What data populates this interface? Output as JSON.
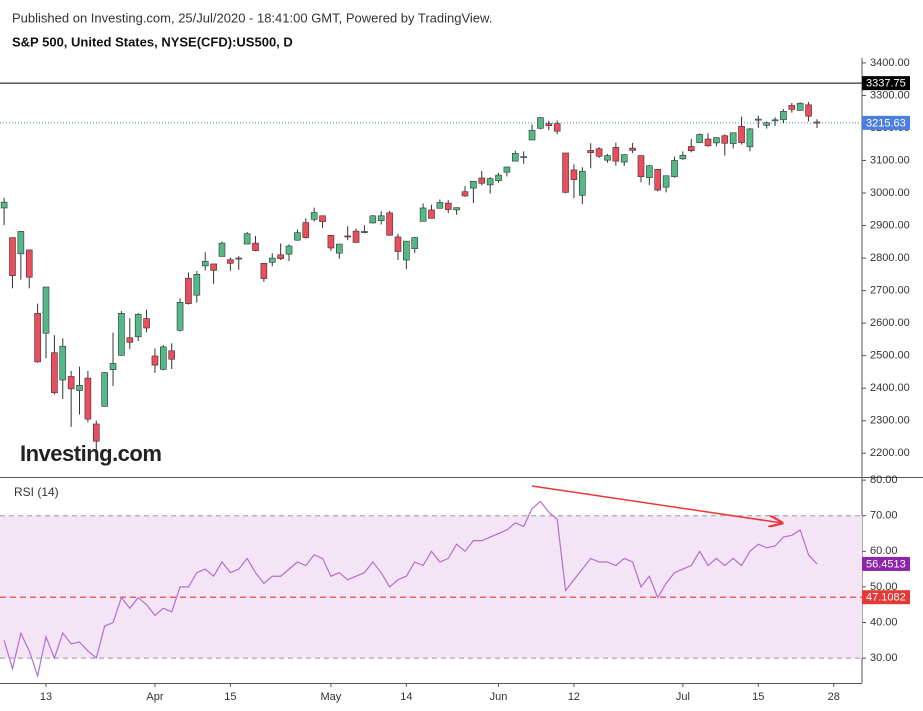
{
  "header": {
    "published": "Published on Investing.com, 25/Jul/2020 - 18:41:00 GMT, Powered by TradingView.",
    "watermark": "Investing.com"
  },
  "chart_data": [
    {
      "type": "candlestick",
      "title": "S&P 500, United States, NYSE(CFD):US500, D",
      "categories": [
        null,
        null,
        null,
        null,
        null,
        "13",
        null,
        null,
        null,
        null,
        null,
        null,
        null,
        null,
        null,
        null,
        null,
        null,
        "Apr",
        null,
        null,
        null,
        null,
        null,
        null,
        null,
        null,
        "15",
        null,
        null,
        null,
        null,
        null,
        null,
        null,
        null,
        null,
        null,
        null,
        "May",
        null,
        null,
        null,
        null,
        null,
        null,
        null,
        null,
        "14",
        null,
        null,
        null,
        null,
        null,
        null,
        null,
        null,
        null,
        null,
        "Jun",
        null,
        null,
        null,
        null,
        null,
        null,
        null,
        null,
        "12",
        null,
        null,
        null,
        null,
        null,
        null,
        null,
        null,
        null,
        null,
        null,
        null,
        "Jul",
        null,
        null,
        null,
        null,
        null,
        null,
        null,
        null,
        "15",
        null,
        null,
        null,
        null,
        null,
        null,
        null,
        null,
        "28"
      ],
      "open": [
        2954,
        2863,
        2813,
        2825,
        2630,
        2569,
        2509,
        2425,
        2436,
        2393,
        2431,
        2290,
        2344,
        2457,
        2501,
        2555,
        2558,
        2614,
        2499,
        2458,
        2515,
        2578,
        2738,
        2686,
        2776,
        2782,
        2805,
        2795,
        2800,
        2843,
        2846,
        2784,
        2787,
        2810,
        2812,
        2855,
        2909,
        2919,
        2930,
        2870,
        2815,
        2868,
        2883,
        2878,
        2908,
        2915,
        2939,
        2865,
        2794,
        2829,
        2913,
        2948,
        2953,
        2969,
        2948,
        3004,
        3015,
        3046,
        3025,
        3038,
        3064,
        3098,
        3111,
        3163,
        3199,
        3213,
        3213,
        3123,
        3071,
        2993,
        3131,
        3136,
        3101,
        3140,
        3095,
        3138,
        3115,
        3047,
        3073,
        3018,
        3050,
        3105,
        3143,
        3155,
        3166,
        3154,
        3176,
        3152,
        3205,
        3142,
        3226,
        3208,
        3224,
        3225,
        3269,
        3254,
        3271,
        3218,
        null,
        null
      ],
      "high": [
        2985,
        2863,
        2882,
        2825,
        2660,
        2711,
        2563,
        2553,
        2453,
        2466,
        2453,
        2300,
        2449,
        2571,
        2637,
        2615,
        2631,
        2641,
        2522,
        2533,
        2538,
        2676,
        2756,
        2760,
        2818,
        2782,
        2851,
        2801,
        2806,
        2880,
        2868,
        2785,
        2815,
        2845,
        2842,
        2888,
        2922,
        2955,
        2930,
        2870,
        2844,
        2898,
        2891,
        2901,
        2932,
        2944,
        2945,
        2875,
        2852,
        2865,
        2968,
        2964,
        2980,
        2978,
        2956,
        3021,
        3036,
        3068,
        3049,
        3062,
        3081,
        3130,
        3128,
        3211,
        3233,
        3222,
        3223,
        3123,
        3088,
        3079,
        3153,
        3141,
        3120,
        3155,
        3120,
        3154,
        3115,
        3086,
        3073,
        3054,
        3112,
        3128,
        3166,
        3183,
        3184,
        3172,
        3180,
        3186,
        3235,
        3200,
        3238,
        3220,
        3233,
        3258,
        3277,
        3279,
        3280,
        3227,
        null,
        null
      ],
      "low": [
        2901,
        2707,
        2734,
        2707,
        2478,
        2492,
        2380,
        2367,
        2281,
        2319,
        2295,
        2192,
        2344,
        2407,
        2500,
        2520,
        2545,
        2572,
        2447,
        2455,
        2459,
        2574,
        2657,
        2663,
        2762,
        2721,
        2805,
        2761,
        2764,
        2843,
        2821,
        2727,
        2775,
        2794,
        2791,
        2853,
        2860,
        2912,
        2892,
        2822,
        2798,
        2855,
        2847,
        2876,
        2906,
        2903,
        2869,
        2794,
        2766,
        2816,
        2913,
        2922,
        2953,
        2938,
        2933,
        2988,
        2969,
        3023,
        2998,
        3031,
        3051,
        3097,
        3090,
        3163,
        3196,
        3193,
        3181,
        2999,
        2984,
        2966,
        3076,
        3108,
        3093,
        3084,
        3083,
        3123,
        3033,
        3024,
        3005,
        3002,
        3047,
        3101,
        3125,
        3155,
        3142,
        3144,
        3115,
        3137,
        3149,
        3128,
        3200,
        3198,
        3206,
        3215,
        3247,
        3253,
        3220,
        3200,
        null,
        null
      ],
      "close": [
        2972,
        2746,
        2882,
        2741,
        2481,
        2711,
        2386,
        2529,
        2398,
        2409,
        2305,
        2237,
        2448,
        2476,
        2630,
        2541,
        2627,
        2585,
        2471,
        2527,
        2489,
        2664,
        2660,
        2750,
        2790,
        2762,
        2846,
        2784,
        2799,
        2875,
        2823,
        2737,
        2800,
        2798,
        2837,
        2878,
        2863,
        2940,
        2912,
        2831,
        2843,
        2866,
        2848,
        2882,
        2930,
        2930,
        2870,
        2820,
        2852,
        2863,
        2954,
        2922,
        2971,
        2949,
        2955,
        2991,
        3036,
        3030,
        3044,
        3055,
        3080,
        3122,
        3112,
        3193,
        3232,
        3207,
        3190,
        3002,
        3041,
        3067,
        3124,
        3113,
        3115,
        3098,
        3118,
        3131,
        3050,
        3084,
        3009,
        3053,
        3100,
        3116,
        3130,
        3180,
        3145,
        3170,
        3153,
        3185,
        3155,
        3197,
        3227,
        3216,
        3225,
        3251,
        3257,
        3276,
        3236,
        3215.63,
        null,
        null
      ],
      "up_color": "#53b987",
      "down_color": "#eb4d5c",
      "ylim": [
        2127,
        3415
      ],
      "yticks": [
        {
          "value": 2200,
          "label": "2200.00"
        },
        {
          "value": 2300,
          "label": "2300.00"
        },
        {
          "value": 2400,
          "label": "2400.00"
        },
        {
          "value": 2500,
          "label": "2500.00"
        },
        {
          "value": 2600,
          "label": "2600.00"
        },
        {
          "value": 2700,
          "label": "2700.00"
        },
        {
          "value": 2800,
          "label": "2800.00"
        },
        {
          "value": 2900,
          "label": "2900.00"
        },
        {
          "value": 3000,
          "label": "3000.00"
        },
        {
          "value": 3100,
          "label": "3100.00"
        },
        {
          "value": 3200,
          "label": "3200.00"
        },
        {
          "value": 3300,
          "label": "3300.00"
        },
        {
          "value": 3400,
          "label": "3400.00"
        }
      ],
      "last_price": 3215.63,
      "last_price_color": "#4a7fe0",
      "high_line": 3337.75,
      "high_line_color": "#000000"
    },
    {
      "type": "line",
      "title": "RSI (14)",
      "color": "#b36fd0",
      "values": [
        35,
        27,
        37,
        32,
        25,
        36,
        30,
        37,
        34,
        34.5,
        32,
        30,
        39,
        40,
        47,
        44,
        47,
        45,
        42,
        44,
        43,
        50,
        50,
        54,
        55,
        53,
        57,
        54,
        55,
        58,
        54,
        51,
        53,
        53,
        55,
        57,
        56,
        59,
        58,
        53,
        54,
        52,
        53,
        54,
        57,
        54,
        50,
        52,
        53,
        57,
        56,
        60,
        57,
        58,
        62,
        60,
        63,
        63,
        64,
        65,
        66,
        68,
        67,
        72,
        74,
        71,
        69,
        49,
        52,
        55,
        58,
        57,
        57,
        56,
        58,
        57,
        50,
        53,
        47,
        51,
        54,
        55,
        56,
        60,
        56,
        58,
        56,
        58,
        56,
        60,
        62,
        61,
        61.5,
        64,
        64.5,
        66,
        59,
        56.4513,
        null,
        null
      ],
      "last_value": 56.4513,
      "last_color": "#8e24aa",
      "level": 47.1082,
      "level_color": "#e53935",
      "bands": [
        30,
        70
      ],
      "band_fill": "#f3e5f5",
      "ylim": [
        23,
        80.6
      ],
      "yticks": [
        {
          "value": 30,
          "label": "30.00"
        },
        {
          "value": 40,
          "label": "40.00"
        },
        {
          "value": 50,
          "label": "50.00"
        },
        {
          "value": 60,
          "label": "60.00"
        },
        {
          "value": 70,
          "label": "70.00"
        },
        {
          "value": 80,
          "label": "80.00"
        }
      ]
    }
  ]
}
